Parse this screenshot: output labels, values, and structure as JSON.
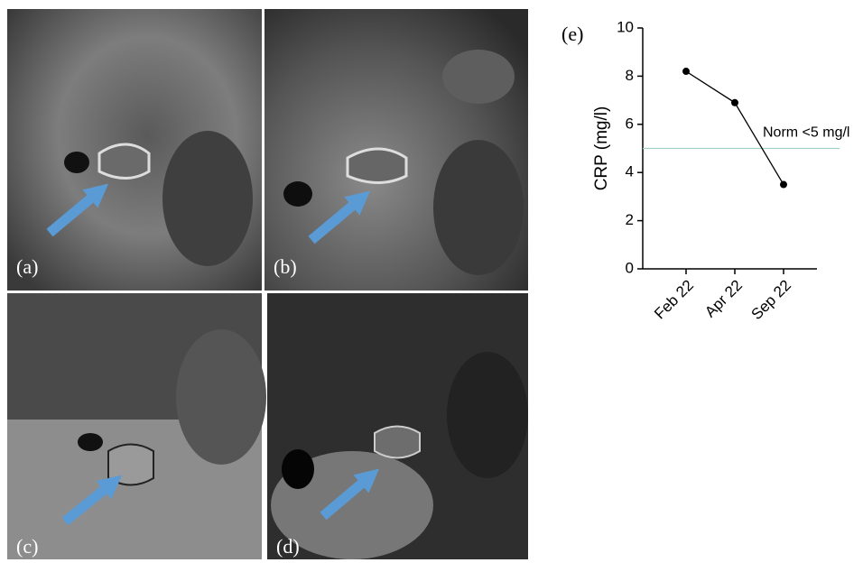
{
  "panels": [
    {
      "label": "(a)"
    },
    {
      "label": "(b)"
    },
    {
      "label": "(c)"
    },
    {
      "label": "(d)"
    }
  ],
  "chart_data": {
    "type": "line",
    "panel_label": "(e)",
    "ylabel": "CRP (mg/l)",
    "categories": [
      "Feb 22",
      "Apr 22",
      "Sep 22"
    ],
    "values": [
      8.2,
      6.9,
      3.5
    ],
    "color": "#000000",
    "ylim": [
      0,
      10
    ],
    "yticks": [
      0,
      2,
      4,
      6,
      8,
      10
    ],
    "reference_line": {
      "value": 5,
      "label": "Norm <5 mg/l",
      "color": "#9fd3c7"
    }
  }
}
